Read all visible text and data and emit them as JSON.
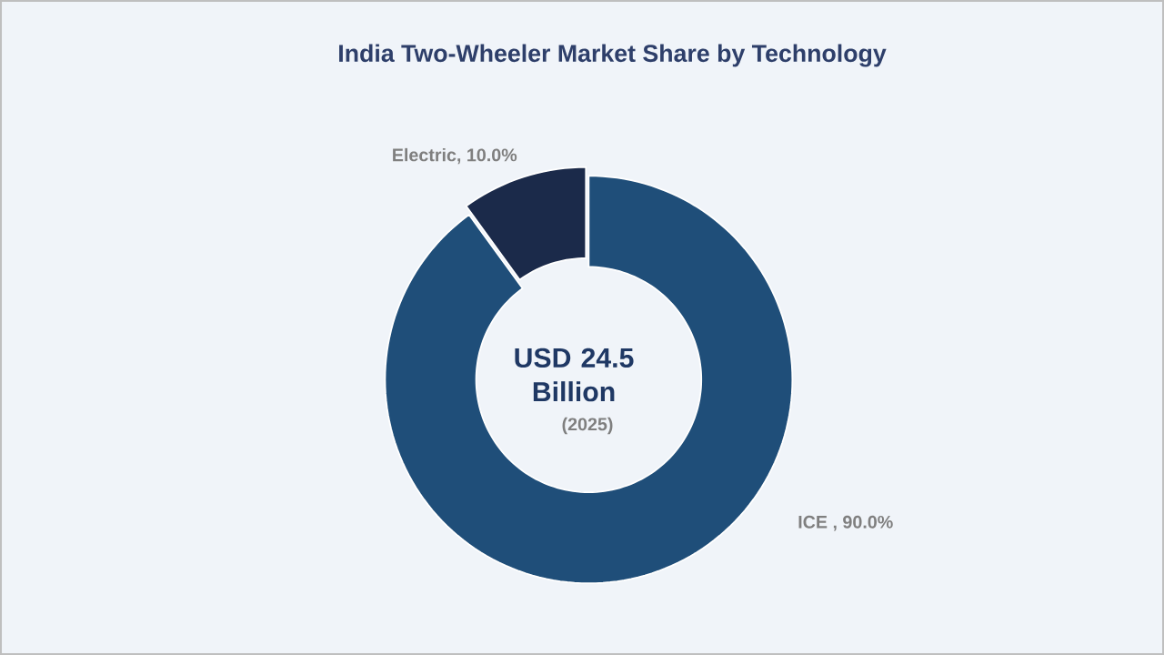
{
  "chart_data": {
    "type": "donut",
    "title": "India Two-Wheeler Market Share by Technology",
    "categories": [
      "ICE ",
      "Electric"
    ],
    "values": [
      90.0,
      10.0
    ],
    "colors": [
      "#1f4e79",
      "#1b2a4a"
    ],
    "value_labels": [
      ", 90.0%",
      ", 10.0%"
    ],
    "annotations": [
      "USD 24.5 Billion",
      "(2025)"
    ]
  }
}
